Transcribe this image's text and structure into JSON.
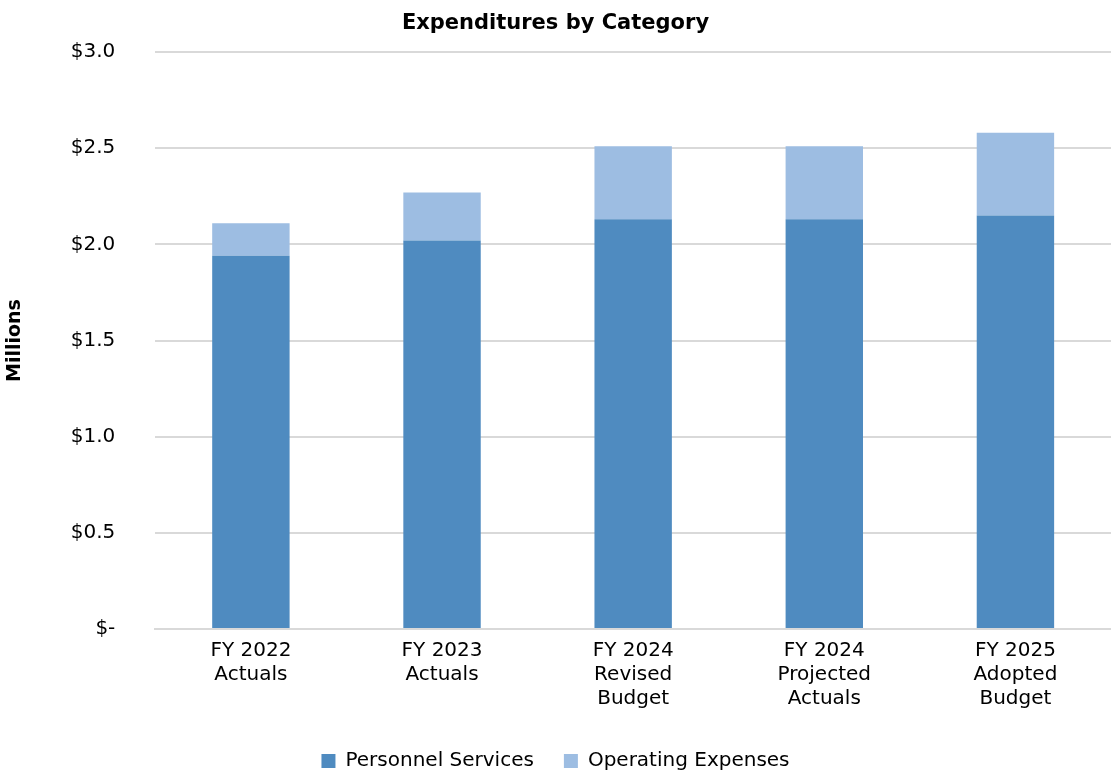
{
  "chart_data": {
    "type": "bar",
    "title": "Expenditures by Category",
    "ylabel": "Millions",
    "categories": [
      "FY 2022 Actuals",
      "FY 2023 Actuals",
      "FY 2024 Revised Budget",
      "FY 2024 Projected Actuals",
      "FY 2025 Adopted Budget"
    ],
    "series": [
      {
        "name": "Personnel Services",
        "color": "#4f8bc0",
        "values": [
          1.94,
          2.02,
          2.13,
          2.13,
          2.15
        ]
      },
      {
        "name": "Operating Expenses",
        "color": "#9dbde2",
        "values": [
          0.17,
          0.25,
          0.38,
          0.38,
          0.43
        ]
      }
    ],
    "stacked": true,
    "ylim": [
      0,
      3
    ],
    "yticks": [
      {
        "value": 0,
        "label": "$-"
      },
      {
        "value": 0.5,
        "label": "$0.5"
      },
      {
        "value": 1,
        "label": "$1.0"
      },
      {
        "value": 1.5,
        "label": "$1.5"
      },
      {
        "value": 2,
        "label": "$2.0"
      },
      {
        "value": 2.5,
        "label": "$2.5"
      },
      {
        "value": 3,
        "label": "$3.0"
      }
    ],
    "grid": "y",
    "legend": "bottom"
  }
}
